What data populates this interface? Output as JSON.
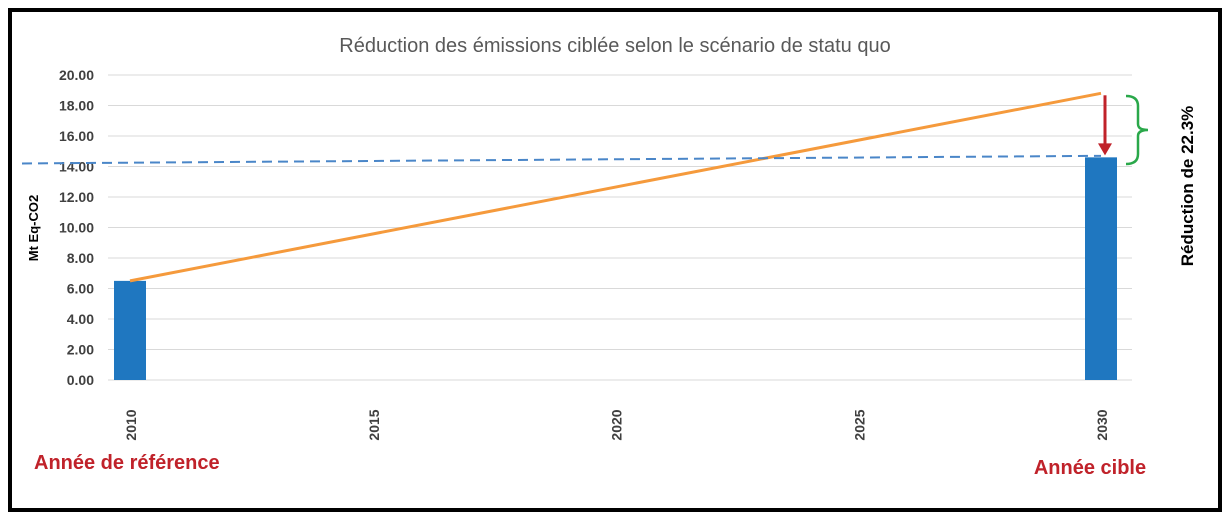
{
  "chart_data": {
    "type": "bar",
    "title": "Réduction des émissions ciblée selon le scénario de statu quo",
    "ylabel": "Mt Eq-CO2",
    "xlabel": "",
    "ylim": [
      0,
      20
    ],
    "xlim": [
      2010,
      2030
    ],
    "y_ticks": [
      "0.00",
      "2.00",
      "4.00",
      "6.00",
      "8.00",
      "10.00",
      "12.00",
      "14.00",
      "16.00",
      "18.00",
      "20.00"
    ],
    "x_ticks": [
      "2010",
      "2015",
      "2020",
      "2025",
      "2030"
    ],
    "grid": true,
    "bars": {
      "x": [
        2010,
        2030
      ],
      "values": [
        6.5,
        14.6
      ],
      "color": "#1f77c0"
    },
    "series": [
      {
        "type": "line",
        "x": [
          2010,
          2030
        ],
        "values": [
          6.5,
          18.8
        ],
        "color": "#f59a3c"
      },
      {
        "type": "dashed-line",
        "x": [
          2010,
          2030
        ],
        "values": [
          14.2,
          14.7
        ],
        "color": "#4a86c8"
      }
    ],
    "annotations": {
      "reduction_label": "Réduction de 22.3%",
      "base_year_label": "Année de référence",
      "target_year_label": "Année cible",
      "arrow_color": "#c0222a",
      "brace_color": "#2aa84a",
      "label_color": "#c0222a"
    }
  }
}
